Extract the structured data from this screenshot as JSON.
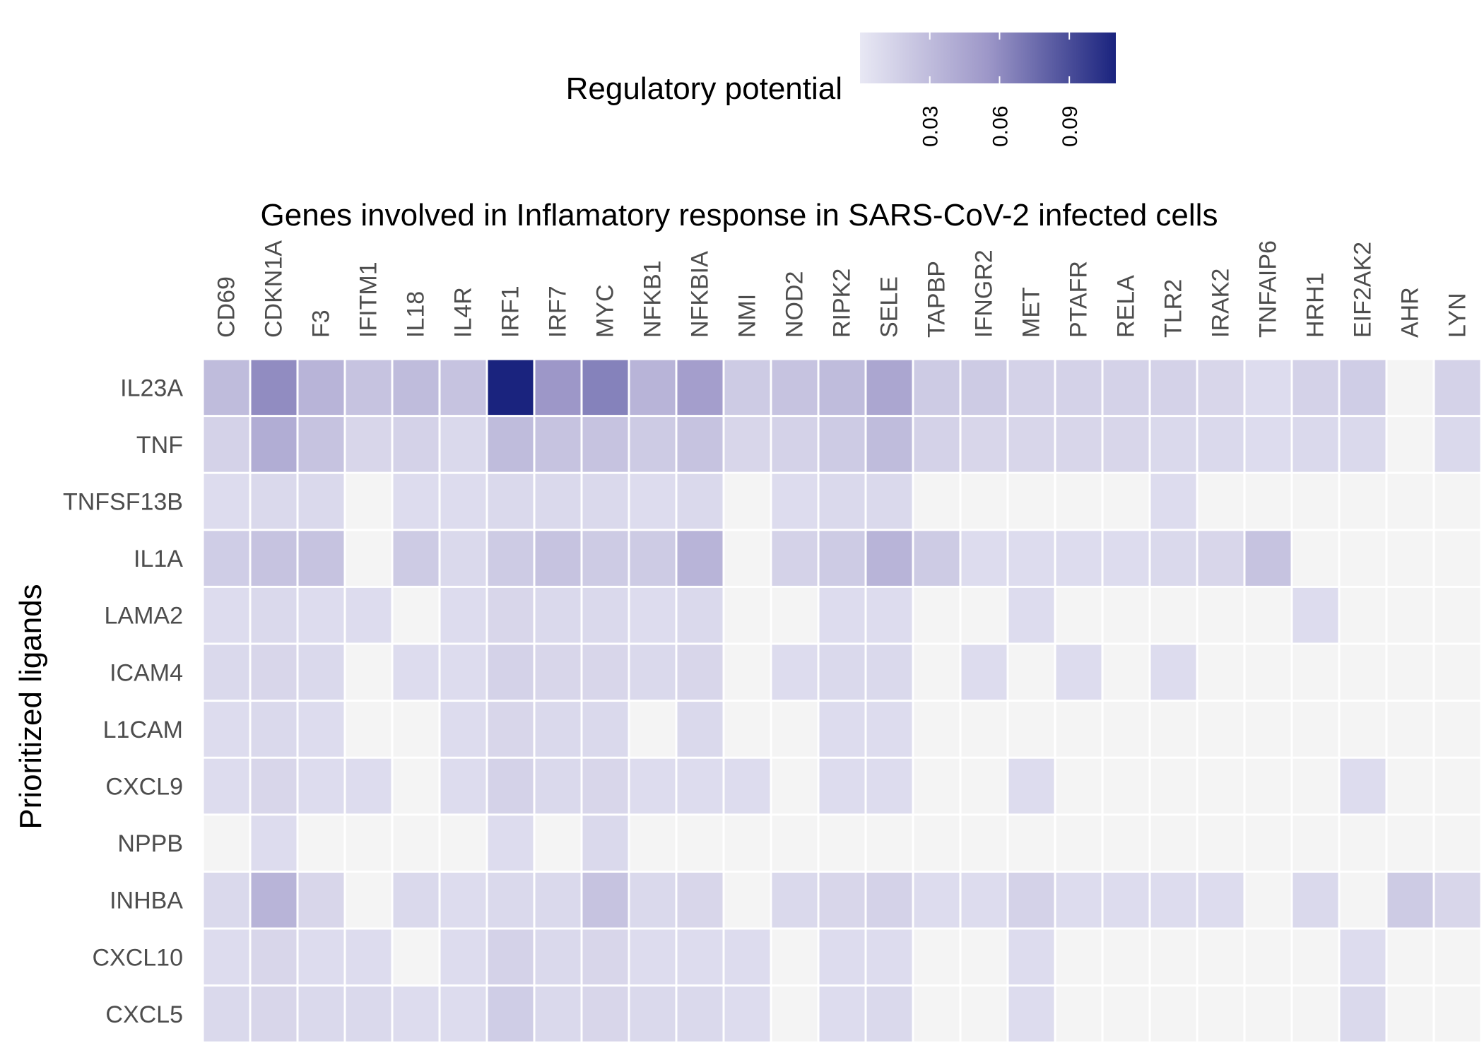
{
  "chart_data": {
    "type": "heatmap",
    "title": "Genes involved in Inflamatory response in SARS-CoV-2 infected cells",
    "xlabel": "",
    "ylabel": "Prioritized ligands",
    "legend": {
      "title": "Regulatory potential",
      "placement": "top",
      "range": [
        0,
        0.11
      ],
      "ticks": [
        0.03,
        0.06,
        0.09
      ],
      "tick_labels": [
        "0.03",
        "0.06",
        "0.09"
      ],
      "color_low": "#e8e8f4",
      "color_high": "#1a237e",
      "na_color": "#f4f4f4"
    },
    "x_categories": [
      "CD69",
      "CDKN1A",
      "F3",
      "IFITM1",
      "IL18",
      "IL4R",
      "IRF1",
      "IRF7",
      "MYC",
      "NFKB1",
      "NFKBIA",
      "NMI",
      "NOD2",
      "RIPK2",
      "SELE",
      "TAPBP",
      "IFNGR2",
      "MET",
      "PTAFR",
      "RELA",
      "TLR2",
      "IRAK2",
      "TNFAIP6",
      "HRH1",
      "EIF2AK2",
      "AHR",
      "LYN"
    ],
    "y_categories": [
      "IL23A",
      "TNF",
      "TNFSF13B",
      "IL1A",
      "LAMA2",
      "ICAM4",
      "L1CAM",
      "CXCL9",
      "NPPB",
      "INHBA",
      "CXCL10",
      "CXCL5"
    ],
    "values": [
      [
        0.03,
        0.06,
        0.035,
        0.025,
        0.03,
        0.025,
        0.11,
        0.055,
        0.065,
        0.035,
        0.05,
        0.02,
        0.025,
        0.03,
        0.045,
        0.02,
        0.02,
        0.015,
        0.015,
        0.015,
        0.015,
        0.012,
        0.008,
        0.015,
        0.018,
        null,
        0.015
      ],
      [
        0.015,
        0.04,
        0.025,
        0.012,
        0.015,
        0.01,
        0.03,
        0.025,
        0.025,
        0.02,
        0.025,
        0.012,
        0.015,
        0.02,
        0.03,
        0.015,
        0.012,
        0.012,
        0.012,
        0.012,
        0.01,
        0.01,
        0.008,
        0.01,
        0.01,
        null,
        0.01
      ],
      [
        0.008,
        0.01,
        0.01,
        null,
        0.008,
        0.008,
        0.01,
        0.01,
        0.01,
        0.008,
        0.01,
        null,
        0.008,
        0.01,
        0.01,
        null,
        null,
        null,
        null,
        null,
        0.008,
        null,
        null,
        null,
        null,
        null,
        null
      ],
      [
        0.018,
        0.025,
        0.025,
        null,
        0.02,
        0.01,
        0.02,
        0.025,
        0.02,
        0.02,
        0.035,
        null,
        0.015,
        0.02,
        0.035,
        0.02,
        0.008,
        0.008,
        0.008,
        0.008,
        0.01,
        0.012,
        0.025,
        null,
        null,
        null,
        null
      ],
      [
        0.008,
        0.01,
        0.008,
        0.008,
        null,
        0.008,
        0.012,
        0.01,
        0.01,
        0.008,
        0.01,
        null,
        null,
        0.008,
        0.008,
        null,
        null,
        0.008,
        null,
        null,
        null,
        null,
        null,
        0.008,
        null,
        null,
        null
      ],
      [
        0.01,
        0.012,
        0.01,
        null,
        0.008,
        0.008,
        0.015,
        0.012,
        0.012,
        0.01,
        0.012,
        null,
        0.008,
        0.01,
        0.01,
        null,
        0.008,
        null,
        0.008,
        null,
        0.008,
        null,
        null,
        null,
        null,
        null,
        null
      ],
      [
        0.008,
        0.01,
        0.008,
        null,
        null,
        0.008,
        0.012,
        0.01,
        0.01,
        null,
        0.01,
        null,
        null,
        0.008,
        0.008,
        null,
        null,
        null,
        null,
        null,
        null,
        null,
        null,
        null,
        null,
        null,
        null
      ],
      [
        0.008,
        0.012,
        0.008,
        0.008,
        null,
        0.008,
        0.015,
        0.01,
        0.012,
        0.008,
        0.008,
        0.008,
        null,
        0.008,
        0.008,
        null,
        null,
        0.008,
        null,
        null,
        null,
        null,
        null,
        null,
        0.008,
        null,
        null
      ],
      [
        null,
        0.008,
        null,
        null,
        null,
        null,
        0.008,
        null,
        0.01,
        null,
        null,
        null,
        null,
        null,
        null,
        null,
        null,
        null,
        null,
        null,
        null,
        null,
        null,
        null,
        null,
        null,
        null
      ],
      [
        0.01,
        0.035,
        0.012,
        null,
        0.01,
        0.008,
        0.01,
        0.01,
        0.025,
        0.01,
        0.012,
        null,
        0.01,
        0.012,
        0.015,
        0.008,
        0.008,
        0.015,
        0.008,
        0.008,
        0.008,
        0.008,
        null,
        0.01,
        null,
        0.02,
        0.012
      ],
      [
        0.008,
        0.012,
        0.008,
        0.008,
        null,
        0.008,
        0.015,
        0.01,
        0.012,
        0.008,
        0.008,
        0.008,
        null,
        0.008,
        0.008,
        null,
        null,
        0.008,
        null,
        null,
        null,
        null,
        null,
        null,
        0.008,
        null,
        null
      ],
      [
        0.01,
        0.012,
        0.01,
        0.01,
        0.008,
        0.008,
        0.018,
        0.01,
        0.012,
        0.01,
        0.01,
        0.008,
        null,
        0.008,
        0.01,
        null,
        null,
        0.008,
        null,
        null,
        null,
        null,
        null,
        null,
        0.01,
        null,
        null
      ]
    ]
  }
}
